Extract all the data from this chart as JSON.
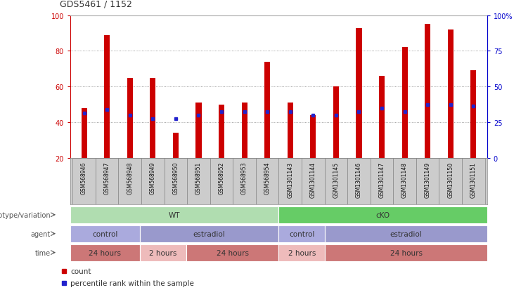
{
  "title": "GDS5461 / 1152",
  "samples": [
    "GSM568946",
    "GSM568947",
    "GSM568948",
    "GSM568949",
    "GSM568950",
    "GSM568951",
    "GSM568952",
    "GSM568953",
    "GSM568954",
    "GSM1301143",
    "GSM1301144",
    "GSM1301145",
    "GSM1301146",
    "GSM1301147",
    "GSM1301148",
    "GSM1301149",
    "GSM1301150",
    "GSM1301151"
  ],
  "red_values": [
    48,
    89,
    65,
    65,
    34,
    51,
    50,
    51,
    74,
    51,
    44,
    60,
    93,
    66,
    82,
    95,
    92,
    69
  ],
  "blue_values": [
    45,
    47,
    44,
    42,
    42,
    44,
    46,
    46,
    46,
    46,
    44,
    44,
    46,
    48,
    46,
    50,
    50,
    49
  ],
  "ymin": 20,
  "ymax": 100,
  "yticks_left": [
    20,
    40,
    60,
    80,
    100
  ],
  "yticks_right_labels": [
    "0",
    "25",
    "50",
    "75",
    "100%"
  ],
  "red_color": "#cc0000",
  "blue_color": "#2222cc",
  "bar_width": 0.25,
  "genotype_groups": [
    {
      "text": "WT",
      "start": 0,
      "end": 8,
      "color": "#b0ddb0"
    },
    {
      "text": "cKO",
      "start": 9,
      "end": 17,
      "color": "#66cc66"
    }
  ],
  "agent_groups": [
    {
      "text": "control",
      "start": 0,
      "end": 2,
      "color": "#aaaadd"
    },
    {
      "text": "estradiol",
      "start": 3,
      "end": 8,
      "color": "#9999cc"
    },
    {
      "text": "control",
      "start": 9,
      "end": 10,
      "color": "#aaaadd"
    },
    {
      "text": "estradiol",
      "start": 11,
      "end": 17,
      "color": "#9999cc"
    }
  ],
  "time_groups": [
    {
      "text": "24 hours",
      "start": 0,
      "end": 2,
      "color": "#cc7777"
    },
    {
      "text": "2 hours",
      "start": 3,
      "end": 4,
      "color": "#eebbbb"
    },
    {
      "text": "24 hours",
      "start": 5,
      "end": 8,
      "color": "#cc7777"
    },
    {
      "text": "2 hours",
      "start": 9,
      "end": 10,
      "color": "#eebbbb"
    },
    {
      "text": "24 hours",
      "start": 11,
      "end": 17,
      "color": "#cc7777"
    }
  ],
  "legend_count_label": "count",
  "legend_percentile_label": "percentile rank within the sample",
  "grid_color": "#888888",
  "bg_color": "#ffffff",
  "tick_color_left": "#cc0000",
  "tick_color_right": "#0000cc",
  "label_color": "#555555",
  "xlabel_bg": "#cccccc"
}
